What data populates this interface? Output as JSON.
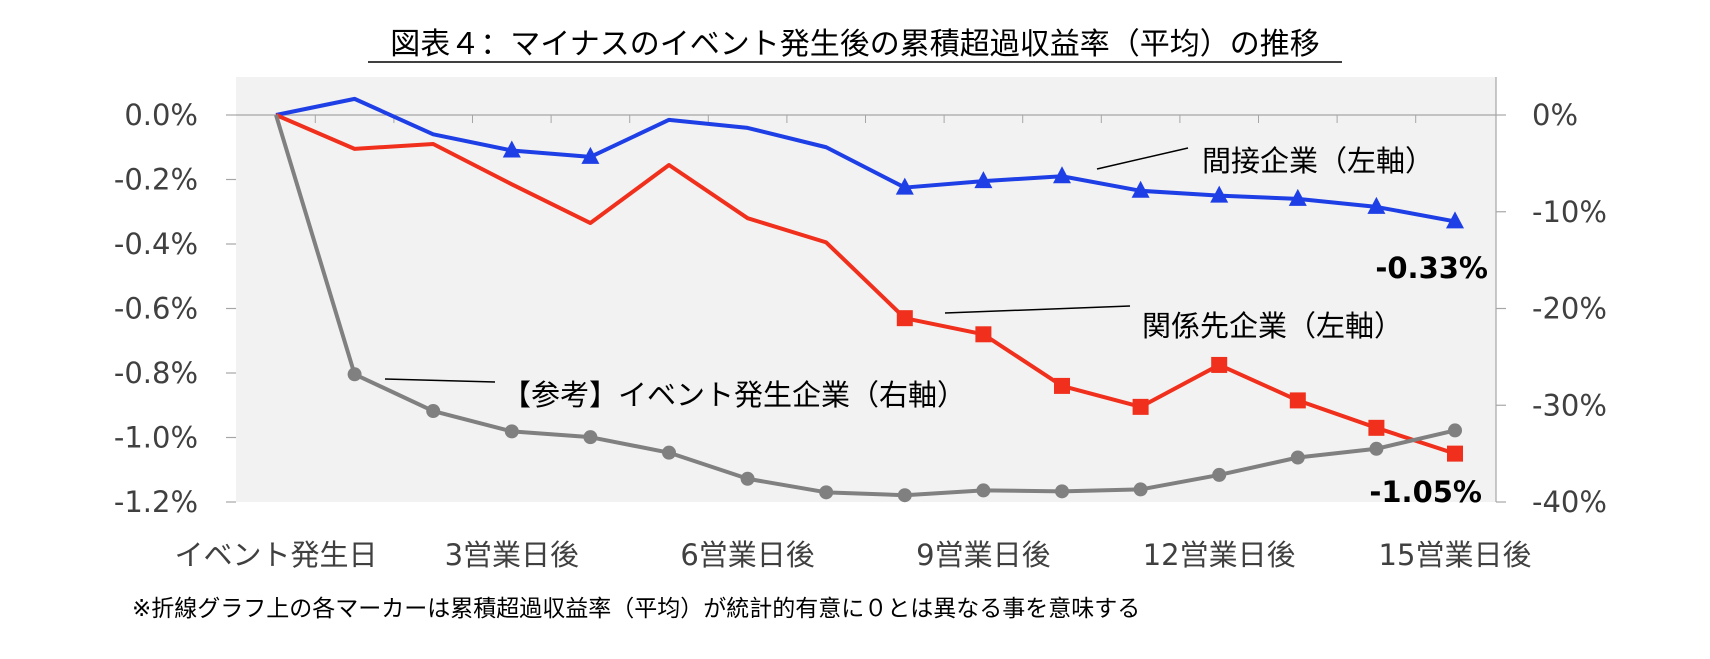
{
  "chart_data": {
    "type": "line",
    "title": "図表４：マイナスのイベント発生後の累積超過収益率（平均）の推移",
    "categories": [
      "イベント発生日",
      "1",
      "2",
      "3営業日後",
      "4",
      "5",
      "6営業日後",
      "7",
      "8",
      "9営業日後",
      "10",
      "11",
      "12営業日後",
      "13",
      "14",
      "15営業日後"
    ],
    "x_tick_labels": [
      "イベント発生日",
      "3営業日後",
      "6営業日後",
      "9営業日後",
      "12営業日後",
      "15営業日後"
    ],
    "x_tick_indices": [
      0,
      3,
      6,
      9,
      12,
      15
    ],
    "y_left": {
      "ylim": [
        -1.2,
        0.0
      ],
      "ticks": [
        0.0,
        -0.2,
        -0.4,
        -0.6,
        -0.8,
        -1.0,
        -1.2
      ],
      "tick_labels": [
        "0.0%",
        "-0.2%",
        "-0.4%",
        "-0.6%",
        "-0.8%",
        "-1.0%",
        "-1.2%"
      ]
    },
    "y_right": {
      "ylim": [
        -40,
        0
      ],
      "ticks": [
        0,
        -10,
        -20,
        -30,
        -40
      ],
      "tick_labels": [
        "0%",
        "-10%",
        "-20%",
        "-30%",
        "-40%"
      ]
    },
    "series": [
      {
        "name": "間接企業（左軸）",
        "axis": "left",
        "color": "#1f3fe6",
        "marker": "triangle",
        "values": [
          0.0,
          0.05,
          -0.06,
          -0.11,
          -0.13,
          -0.015,
          -0.04,
          -0.1,
          -0.225,
          -0.205,
          -0.19,
          -0.235,
          -0.25,
          -0.26,
          -0.285,
          -0.33
        ],
        "significant": [
          false,
          false,
          false,
          true,
          true,
          false,
          false,
          false,
          true,
          true,
          true,
          true,
          true,
          true,
          true,
          true
        ]
      },
      {
        "name": "関係先企業（左軸）",
        "axis": "left",
        "color": "#f0301c",
        "marker": "square",
        "values": [
          0.0,
          -0.105,
          -0.09,
          -0.215,
          -0.335,
          -0.155,
          -0.32,
          -0.395,
          -0.63,
          -0.68,
          -0.84,
          -0.905,
          -0.775,
          -0.885,
          -0.97,
          -1.05
        ],
        "significant": [
          false,
          false,
          false,
          false,
          false,
          false,
          false,
          false,
          true,
          true,
          true,
          true,
          true,
          true,
          true,
          true
        ]
      },
      {
        "name": "【参考】イベント発生企業（右軸）",
        "axis": "right",
        "color": "#808080",
        "marker": "circle",
        "values": [
          0,
          -26.8,
          -30.6,
          -32.7,
          -33.3,
          -34.9,
          -37.6,
          -39.0,
          -39.3,
          -38.8,
          -38.9,
          -38.7,
          -37.2,
          -35.4,
          -34.5,
          -32.6
        ],
        "significant": [
          false,
          true,
          true,
          true,
          true,
          true,
          true,
          true,
          true,
          true,
          true,
          true,
          true,
          true,
          true,
          true
        ]
      }
    ],
    "end_labels": [
      "-0.33%",
      "-1.05%"
    ],
    "grid": false,
    "plot_background": "#f2f2f2"
  },
  "footnote": "※折線グラフ上の各マーカーは累積超過収益率（平均）が統計的有意に０とは異なる事を意味する"
}
